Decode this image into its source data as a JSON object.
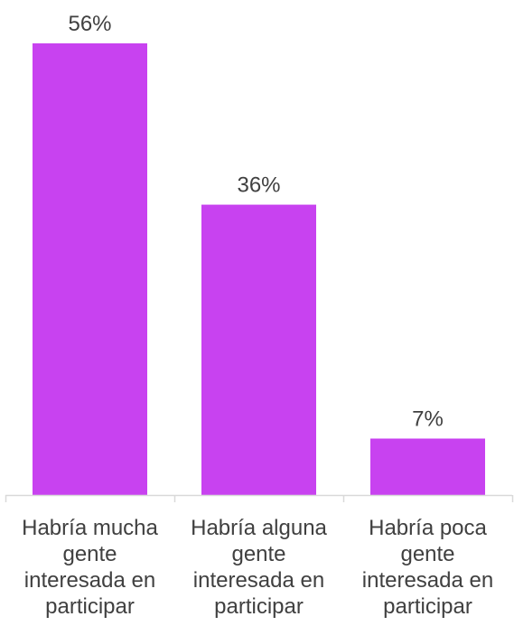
{
  "chart_data": {
    "type": "bar",
    "categories": [
      "Habría mucha gente interesada en participar",
      "Habría alguna gente interesada en participar",
      "Habría poca gente interesada en participar"
    ],
    "category_lines": [
      [
        "Habría mucha",
        "gente",
        "interesada en",
        "participar"
      ],
      [
        "Habría alguna",
        "gente",
        "interesada en",
        "participar"
      ],
      [
        "Habría poca",
        "gente",
        "interesada en",
        "participar"
      ]
    ],
    "values": [
      56,
      36,
      7
    ],
    "value_labels": [
      "56%",
      "36%",
      "7%"
    ],
    "title": "",
    "xlabel": "",
    "ylabel": "",
    "ylim": [
      0,
      56
    ],
    "grid": false,
    "legend": "none",
    "colors": {
      "bar": "#c842f0",
      "text": "#404040",
      "axis": "#d9d9d9"
    }
  }
}
